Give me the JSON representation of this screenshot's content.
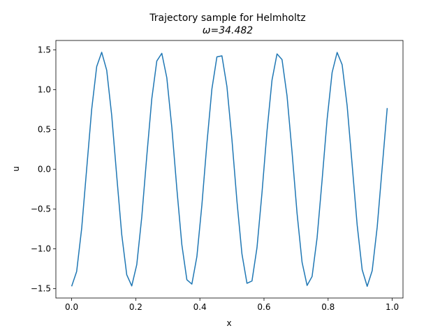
{
  "chart_data": {
    "type": "line",
    "title": "Trajectory sample for Helmholtz",
    "subtitle": "ω=34.482",
    "x_label": "x",
    "y_label": "u",
    "x": [
      0,
      0.015625,
      0.03125,
      0.046875,
      0.0625,
      0.078125,
      0.09375,
      0.109375,
      0.125,
      0.140625,
      0.15625,
      0.171875,
      0.1875,
      0.203125,
      0.21875,
      0.234375,
      0.25,
      0.265625,
      0.28125,
      0.296875,
      0.3125,
      0.328125,
      0.34375,
      0.359375,
      0.375,
      0.390625,
      0.40625,
      0.421875,
      0.4375,
      0.453125,
      0.46875,
      0.484375,
      0.5,
      0.515625,
      0.53125,
      0.546875,
      0.5625,
      0.578125,
      0.59375,
      0.609375,
      0.625,
      0.640625,
      0.65625,
      0.671875,
      0.6875,
      0.703125,
      0.71875,
      0.734375,
      0.75,
      0.765625,
      0.78125,
      0.796875,
      0.8125,
      0.828125,
      0.84375,
      0.859375,
      0.875,
      0.890625,
      0.90625,
      0.921875,
      0.9375,
      0.953125,
      0.96875,
      0.984375
    ],
    "series": [
      {
        "name": "u",
        "color": "#1f77b4",
        "values": [
          -1.47,
          -1.284,
          -0.744,
          0.005,
          0.752,
          1.289,
          1.469,
          1.243,
          0.675,
          -0.085,
          -0.82,
          -1.325,
          -1.465,
          -1.198,
          -0.6,
          0.165,
          0.885,
          1.359,
          1.456,
          1.148,
          0.525,
          -0.244,
          -0.947,
          -1.387,
          -1.442,
          -1.098,
          -0.45,
          0.323,
          1.008,
          1.411,
          1.424,
          1.039,
          0.373,
          -0.401,
          -1.064,
          -1.432,
          -1.403,
          -0.985,
          -0.295,
          0.478,
          1.119,
          1.448,
          1.377,
          0.921,
          0.216,
          -0.553,
          -1.168,
          -1.459,
          -1.347,
          -0.861,
          -0.136,
          0.626,
          1.215,
          1.467,
          1.313,
          0.797,
          0.056,
          -0.7,
          -1.262,
          -1.47,
          -1.274,
          -0.726,
          0.024,
          0.768
        ]
      }
    ],
    "xlim": [
      -0.0492,
      1.0336
    ],
    "ylim": [
      -1.617,
      1.617
    ],
    "xticks": [
      {
        "value": 0,
        "label": "0.0"
      },
      0.2,
      0.4,
      0.6,
      0.8,
      {
        "value": 1,
        "label": "1.0"
      }
    ],
    "yticks": [
      {
        "value": -1.5,
        "label": "−1.5"
      },
      {
        "value": -1,
        "label": "−1.0"
      },
      {
        "value": -0.5,
        "label": "−0.5"
      },
      {
        "value": 0,
        "label": "0.0"
      },
      0.5,
      {
        "value": 1,
        "label": "1.0"
      },
      1.5
    ],
    "grid": false
  }
}
